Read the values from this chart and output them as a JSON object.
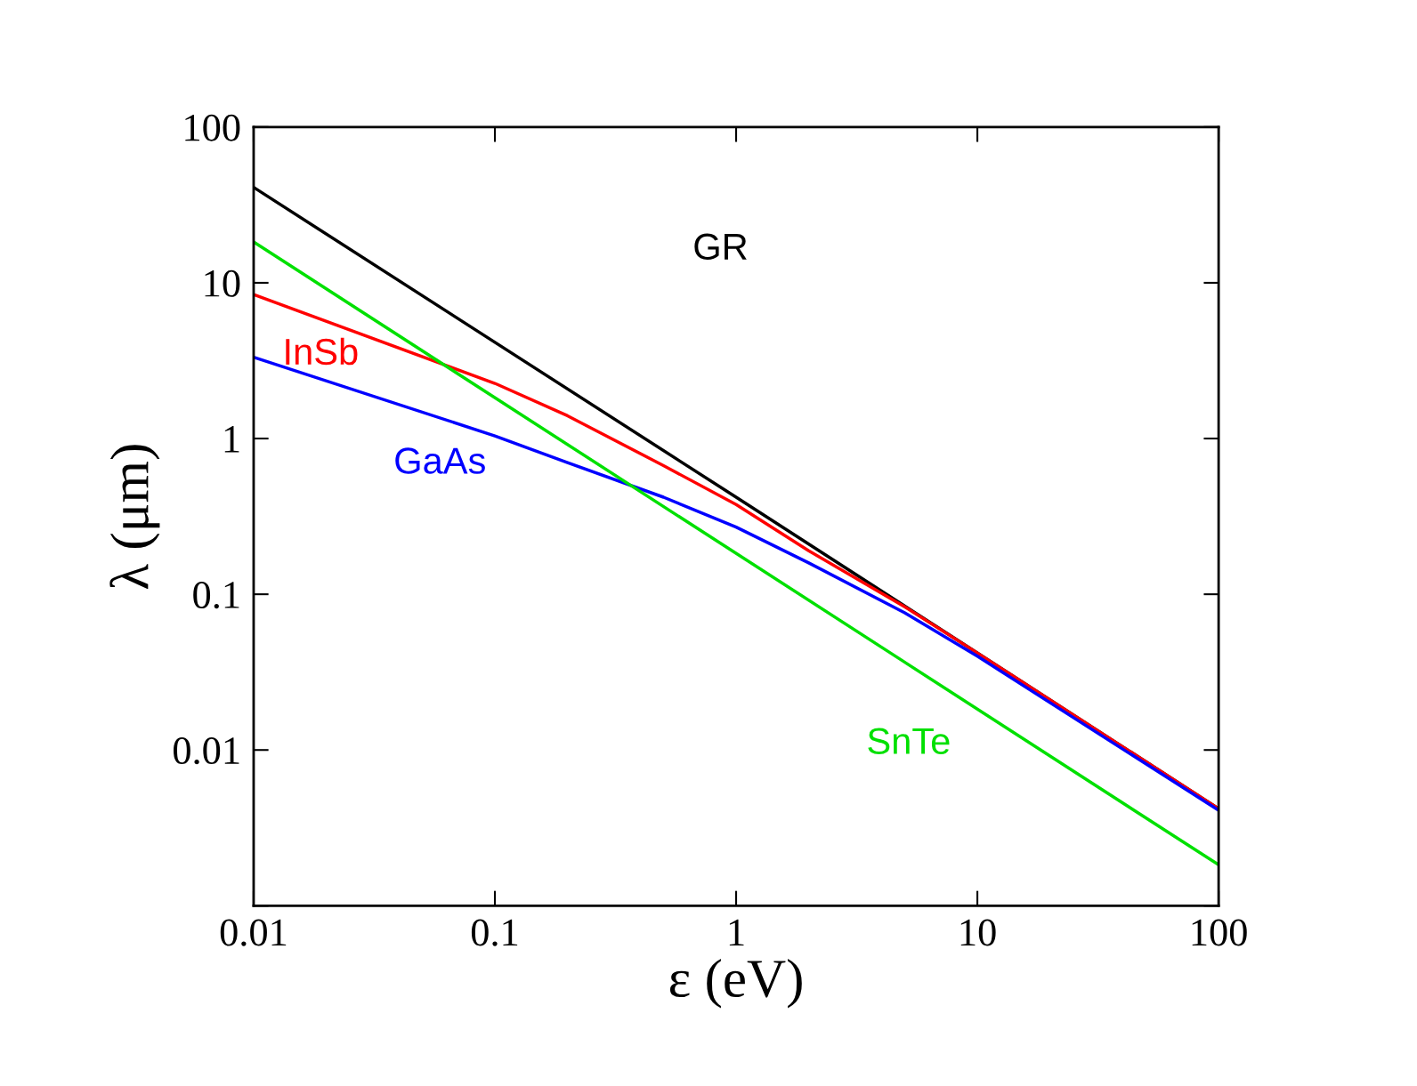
{
  "chart_data": {
    "type": "line",
    "xlabel": "ε (eV)",
    "ylabel": "λ (μm)",
    "log": "xy",
    "xlim": [
      0.01,
      100
    ],
    "ylim": [
      0.001,
      100
    ],
    "xticks": [
      0.01,
      0.1,
      1,
      10,
      100
    ],
    "yticks": [
      {
        "value": 0.001,
        "label": null
      },
      0.01,
      0.1,
      1,
      10,
      100
    ],
    "grid": false,
    "legend": false,
    "series": [
      {
        "name": "GR",
        "color": "#000000",
        "x": [
          0.01,
          1,
          100
        ],
        "values": [
          41,
          0.42,
          0.0042
        ]
      },
      {
        "name": "InSb",
        "color": "#ff0000",
        "x": [
          0.01,
          0.1,
          0.2,
          0.5,
          1,
          2,
          5,
          10,
          100
        ],
        "values": [
          8.4,
          2.26,
          1.4,
          0.67,
          0.377,
          0.19,
          0.083,
          0.042,
          0.0042
        ]
      },
      {
        "name": "GaAs",
        "color": "#0000ff",
        "x": [
          0.01,
          0.1,
          0.2,
          0.5,
          1,
          2,
          5,
          10,
          100
        ],
        "values": [
          3.33,
          1.04,
          0.7,
          0.42,
          0.27,
          0.159,
          0.076,
          0.04,
          0.0041
        ]
      },
      {
        "name": "SnTe",
        "color": "#00e000",
        "x": [
          0.01,
          100
        ],
        "values": [
          18.3,
          0.00183
        ]
      }
    ]
  }
}
